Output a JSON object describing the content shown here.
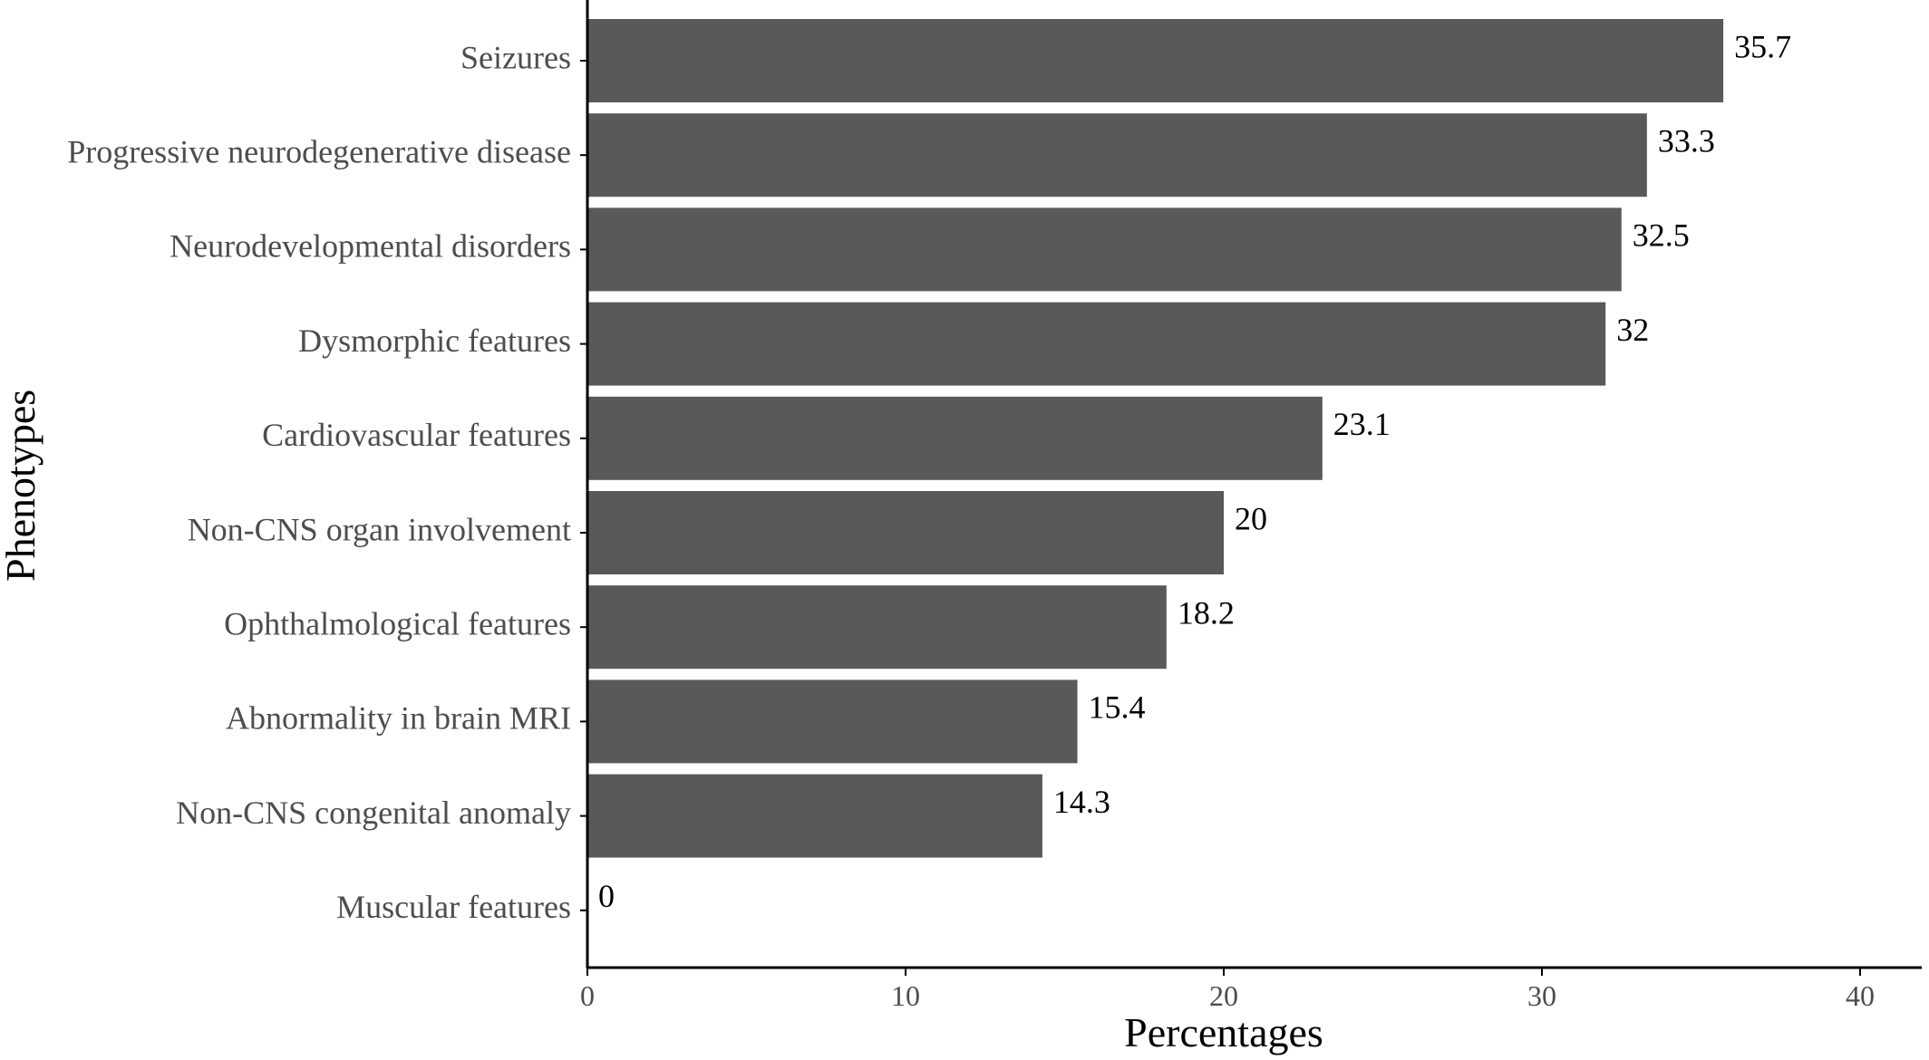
{
  "chart_data": {
    "type": "bar",
    "orientation": "horizontal",
    "categories": [
      "Seizures",
      "Progressive neurodegenerative disease",
      "Neurodevelopmental disorders",
      "Dysmorphic features",
      "Cardiovascular features",
      "Non-CNS organ involvement",
      "Ophthalmological features",
      "Abnormality in brain MRI",
      "Non-CNS congenital anomaly",
      "Muscular features"
    ],
    "values": [
      35.7,
      33.3,
      32.5,
      32,
      23.1,
      20,
      18.2,
      15.4,
      14.3,
      0
    ],
    "value_labels": [
      "35.7",
      "33.3",
      "32.5",
      "32",
      "23.1",
      "20",
      "18.2",
      "15.4",
      "14.3",
      "0"
    ],
    "xlabel": "Percentages",
    "ylabel": "Phenotypes",
    "xlim": [
      0,
      40
    ],
    "xticks": [
      0,
      10,
      20,
      30,
      40
    ],
    "xtick_labels": [
      "0",
      "10",
      "20",
      "30",
      "40"
    ],
    "grid": false,
    "bar_color": "#595959",
    "axis_color": "#000000"
  }
}
